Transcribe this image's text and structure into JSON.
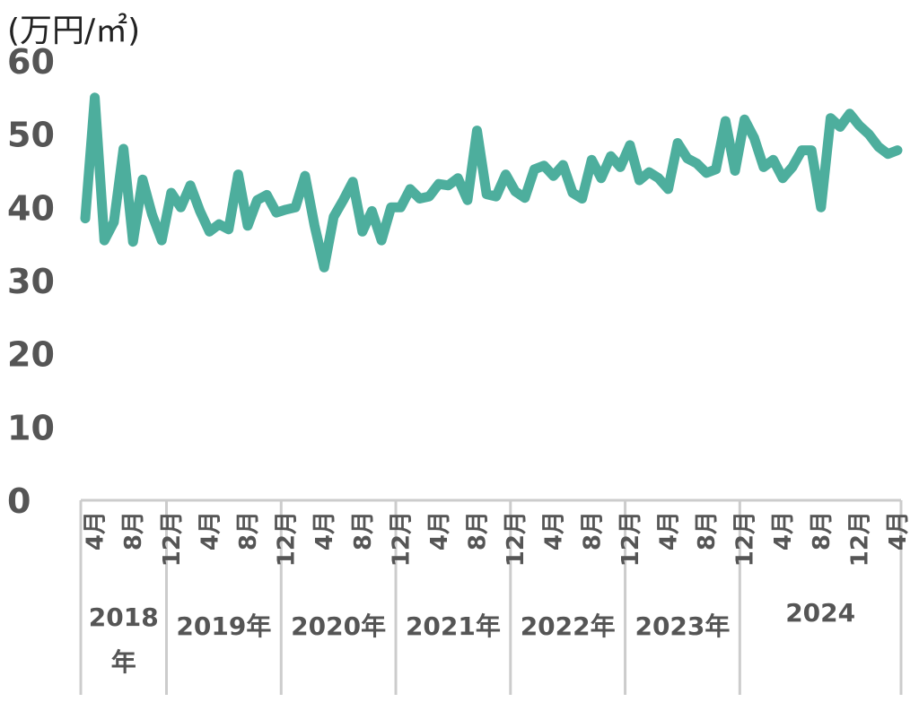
{
  "chart_data": {
    "type": "line",
    "unit_label": "(万円/㎡)",
    "ylim": [
      0,
      60
    ],
    "yticks": [
      "0",
      "10",
      "20",
      "30",
      "40",
      "50",
      "60"
    ],
    "ytick_values": [
      0,
      10,
      20,
      30,
      40,
      50,
      60
    ],
    "month_labels": [
      {
        "index": 1,
        "label": "4月"
      },
      {
        "index": 5,
        "label": "8月"
      },
      {
        "index": 9,
        "label": "12月"
      },
      {
        "index": 13,
        "label": "4月"
      },
      {
        "index": 17,
        "label": "8月"
      },
      {
        "index": 21,
        "label": "12月"
      },
      {
        "index": 25,
        "label": "4月"
      },
      {
        "index": 29,
        "label": "8月"
      },
      {
        "index": 33,
        "label": "12月"
      },
      {
        "index": 37,
        "label": "4月"
      },
      {
        "index": 41,
        "label": "8月"
      },
      {
        "index": 45,
        "label": "12月"
      },
      {
        "index": 49,
        "label": "4月"
      },
      {
        "index": 53,
        "label": "8月"
      },
      {
        "index": 57,
        "label": "12月"
      },
      {
        "index": 61,
        "label": "4月"
      },
      {
        "index": 65,
        "label": "8月"
      },
      {
        "index": 69,
        "label": "12月"
      },
      {
        "index": 73,
        "label": "4月"
      },
      {
        "index": 77,
        "label": "8月"
      },
      {
        "index": 81,
        "label": "12月"
      },
      {
        "index": 85,
        "label": "4月"
      }
    ],
    "year_groups": [
      {
        "label": "2018年",
        "lines": [
          "2018",
          "年"
        ],
        "start": 0,
        "end": 8
      },
      {
        "label": "2019年",
        "lines": [
          "2019年"
        ],
        "start": 9,
        "end": 20
      },
      {
        "label": "2020年",
        "lines": [
          "2020年"
        ],
        "start": 21,
        "end": 32
      },
      {
        "label": "2021年",
        "lines": [
          "2021年"
        ],
        "start": 33,
        "end": 44
      },
      {
        "label": "2022年",
        "lines": [
          "2022年"
        ],
        "start": 45,
        "end": 56
      },
      {
        "label": "2023年",
        "lines": [
          "2023年"
        ],
        "start": 57,
        "end": 68
      },
      {
        "label": "2024",
        "lines": [
          "2024"
        ],
        "start": 69,
        "end": 85
      }
    ],
    "series": [
      {
        "color": "#4DAE9D",
        "values": [
          38.5,
          55,
          35.5,
          38,
          48,
          35.3,
          43.8,
          39,
          35.5,
          42,
          40,
          43,
          39.5,
          36.7,
          37.7,
          37,
          44.5,
          37.5,
          41,
          41.7,
          39.3,
          39.7,
          40,
          44.3,
          37.5,
          31.8,
          38.7,
          41,
          43.5,
          36.7,
          39.5,
          35.5,
          40,
          40,
          42.5,
          41.2,
          41.5,
          43.2,
          43,
          44,
          41,
          50.5,
          41.8,
          41.5,
          44.5,
          42.2,
          41.3,
          45.2,
          45.7,
          44.3,
          45.8,
          42,
          41.2,
          46.5,
          44,
          47,
          45.5,
          48.5,
          43.7,
          44.8,
          44,
          42.5,
          48.8,
          46.7,
          46,
          44.7,
          45.2,
          51.8,
          45,
          52,
          49.5,
          45.5,
          46.5,
          44,
          45.5,
          47.8,
          47.8,
          40,
          52.2,
          51,
          52.8,
          51.2,
          50,
          48.3,
          47.3,
          47.8
        ]
      }
    ]
  }
}
